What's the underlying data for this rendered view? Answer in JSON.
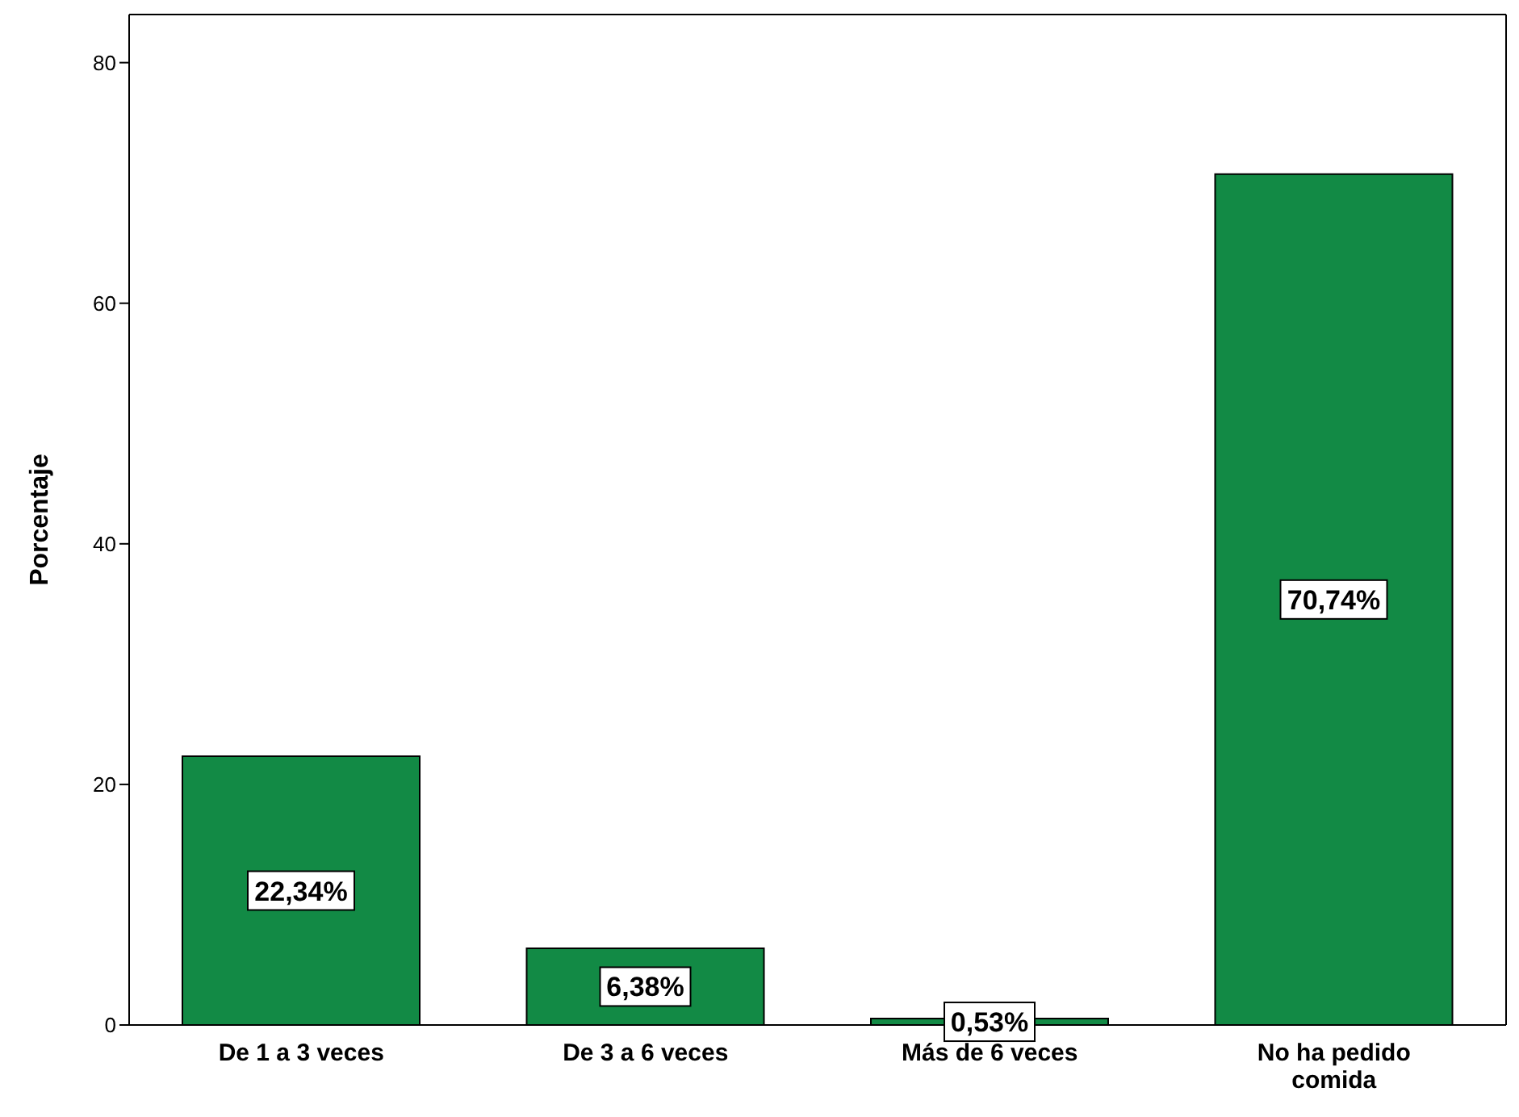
{
  "chart_data": {
    "type": "bar",
    "ylabel": "Porcentaje",
    "categories": [
      "De 1 a 3 veces",
      "De 3 a 6 veces",
      "Más de 6 veces",
      "No ha pedido comida"
    ],
    "values": [
      22.34,
      6.38,
      0.53,
      70.74
    ],
    "value_labels": [
      "22,34%",
      "6,38%",
      "0,53%",
      "70,74%"
    ],
    "color": "#128a45",
    "ylim": [
      0,
      84
    ],
    "yticks": [
      0,
      20,
      40,
      60,
      80
    ]
  }
}
